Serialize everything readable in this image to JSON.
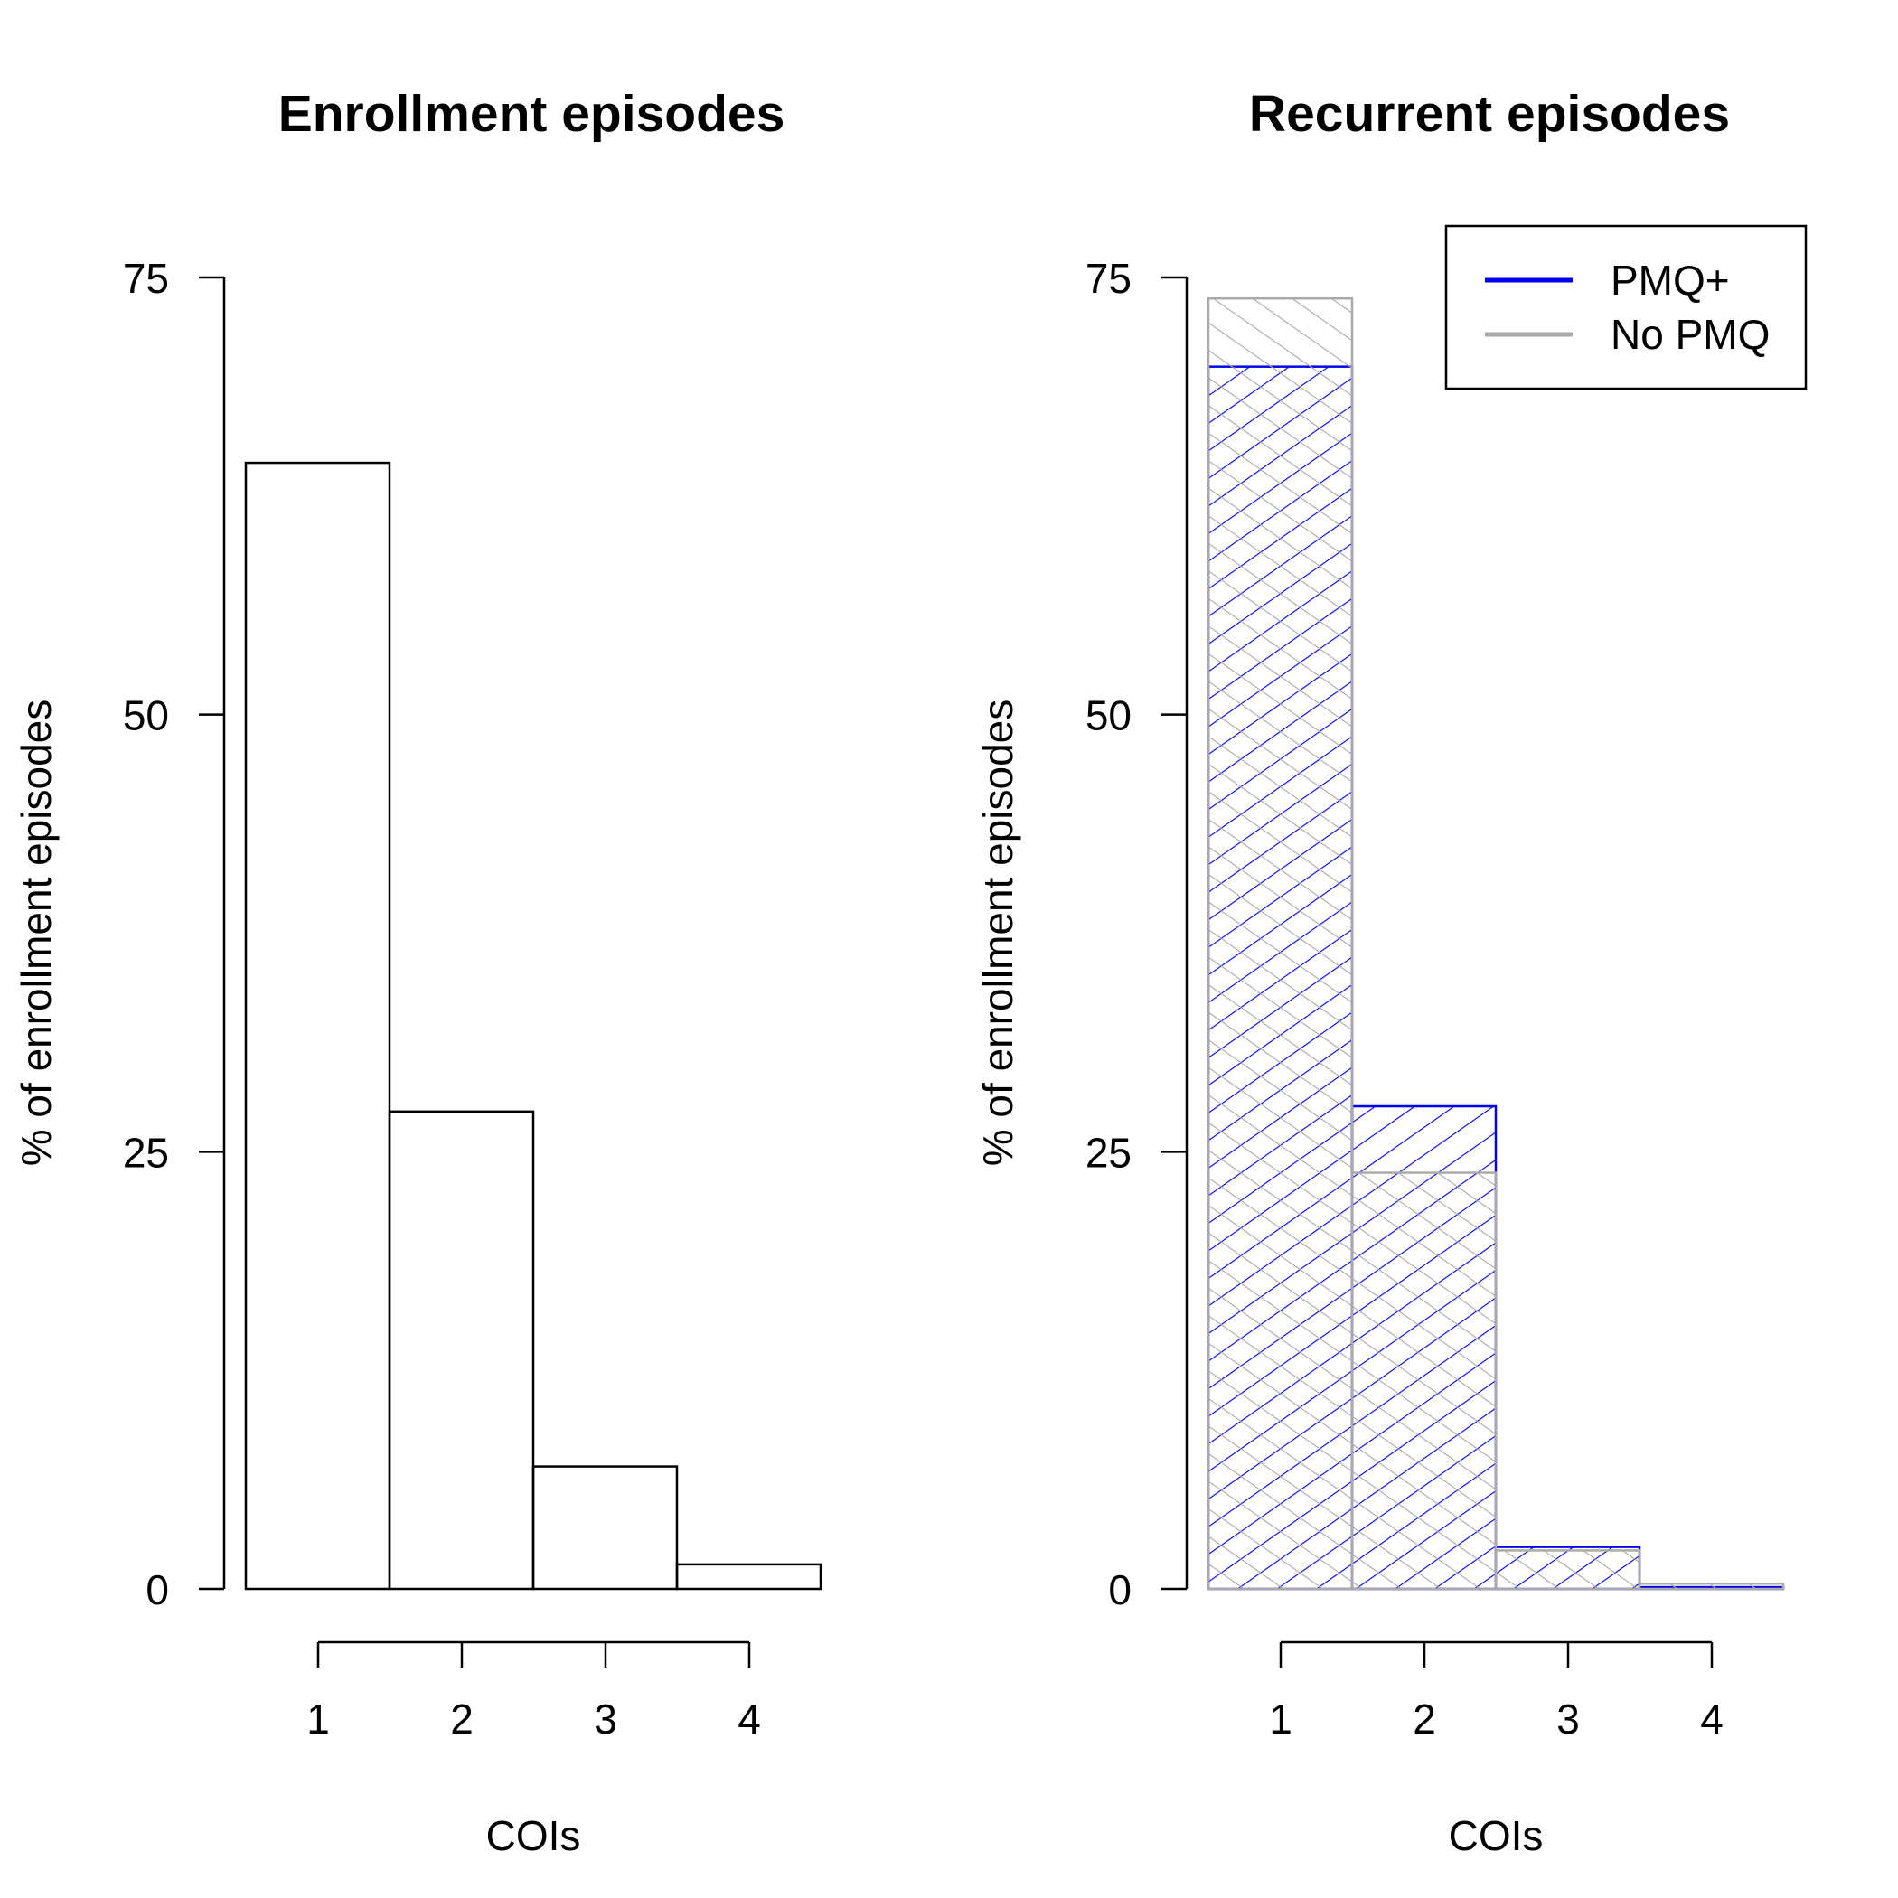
{
  "chart_data": [
    {
      "type": "bar",
      "title": "Enrollment episodes",
      "xlabel": "COIs",
      "ylabel": "% of enrollment episodes",
      "categories": [
        "1",
        "2",
        "3",
        "4"
      ],
      "xticks": [
        "1",
        "2",
        "3",
        "4"
      ],
      "ylim": [
        0,
        75
      ],
      "yticks": [
        "0",
        "25",
        "50",
        "75"
      ],
      "grid": false,
      "series": [
        {
          "values": [
            64.4,
            27.3,
            7.0,
            1.4
          ],
          "color": "#000000",
          "fill": "none"
        }
      ]
    },
    {
      "type": "bar",
      "title": "Recurrent episodes",
      "xlabel": "COIs",
      "ylabel": "% of enrollment episodes",
      "categories": [
        "1",
        "2",
        "3",
        "4"
      ],
      "xticks": [
        "1",
        "2",
        "3",
        "4"
      ],
      "ylim": [
        0,
        75
      ],
      "yticks": [
        "0",
        "25",
        "50",
        "75"
      ],
      "grid": false,
      "legend": {
        "position": "top-right"
      },
      "series": [
        {
          "name": "PMQ+",
          "values": [
            69.9,
            27.6,
            2.4,
            0.1
          ],
          "color": "#0000ee",
          "hatch": "diagonal-up"
        },
        {
          "name": "No PMQ",
          "values": [
            73.8,
            23.8,
            2.2,
            0.3
          ],
          "color": "#aaaaaa",
          "hatch": "diagonal-down"
        }
      ]
    }
  ]
}
